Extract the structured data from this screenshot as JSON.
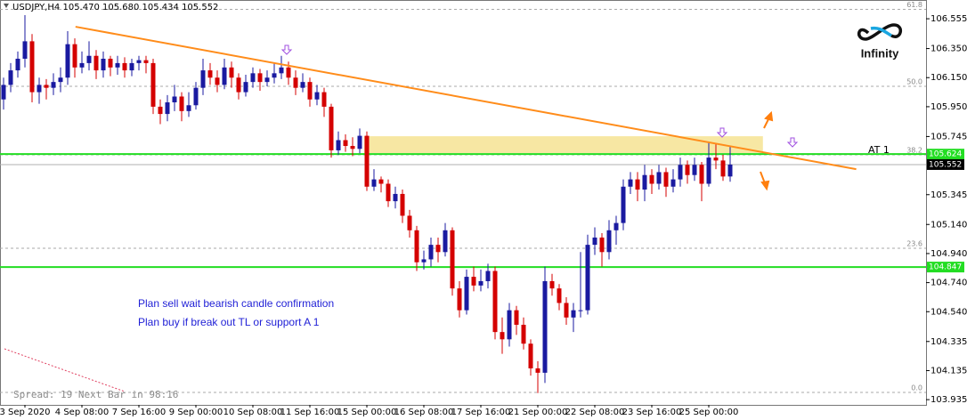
{
  "chart_data": {
    "type": "candlestick",
    "title": "USDJPY,H4  105.470 105.680 105.434 105.552",
    "categories": [
      null,
      null,
      null,
      "3 Sep 2020",
      null,
      null,
      null,
      null,
      null,
      null,
      null,
      "4 Sep 08:00",
      null,
      null,
      null,
      null,
      null,
      null,
      null,
      "7 Sep 16:00",
      null,
      null,
      null,
      null,
      null,
      null,
      null,
      "9 Sep 00:00",
      null,
      null,
      null,
      null,
      null,
      null,
      null,
      "10 Sep 08:00",
      null,
      null,
      null,
      null,
      null,
      null,
      null,
      "11 Sep 16:00",
      null,
      null,
      null,
      null,
      null,
      null,
      null,
      "15 Sep 00:00",
      null,
      null,
      null,
      null,
      null,
      null,
      null,
      "16 Sep 08:00",
      null,
      null,
      null,
      null,
      null,
      null,
      null,
      "17 Sep 16:00",
      null,
      null,
      null,
      null,
      null,
      null,
      null,
      "21 Sep 00:00",
      null,
      null,
      null,
      null,
      null,
      null,
      null,
      "22 Sep 08:00",
      null,
      null,
      null,
      null,
      null,
      null,
      null,
      "23 Sep 16:00",
      null,
      null,
      null,
      null,
      null,
      null,
      null,
      "25 Sep 00:00",
      null,
      null,
      null
    ],
    "open": [
      106.0,
      106.1,
      106.2,
      106.28,
      106.4,
      106.05,
      106.1,
      106.08,
      106.12,
      106.15,
      106.38,
      106.22,
      106.25,
      106.3,
      106.2,
      106.28,
      106.22,
      106.25,
      106.2,
      106.25,
      106.27,
      106.25,
      105.95,
      105.9,
      105.98,
      106.02,
      105.92,
      105.96,
      106.08,
      106.2,
      106.15,
      106.1,
      106.22,
      106.15,
      106.05,
      106.12,
      106.18,
      106.12,
      106.15,
      106.18,
      106.22,
      106.15,
      106.08,
      106.12,
      106.0,
      106.05,
      105.95,
      105.65,
      105.72,
      105.68,
      105.66,
      105.75,
      105.4,
      105.45,
      105.42,
      105.3,
      105.35,
      105.2,
      105.1,
      104.88,
      104.9,
      105.0,
      104.95,
      105.1,
      104.7,
      104.55,
      104.78,
      104.72,
      104.75,
      104.82,
      104.4,
      104.35,
      104.55,
      104.45,
      104.32,
      104.15,
      104.12,
      104.75,
      104.7,
      104.6,
      104.5,
      104.55,
      104.55,
      105.0,
      105.05,
      104.95,
      105.1,
      105.15,
      105.4,
      105.45,
      105.38,
      105.48,
      105.42,
      105.5,
      105.4,
      105.45,
      105.55,
      105.48,
      105.55,
      105.42,
      105.6,
      105.58,
      105.47
    ],
    "high": [
      106.15,
      106.25,
      106.33,
      106.58,
      106.45,
      106.15,
      106.14,
      106.18,
      106.22,
      106.47,
      106.42,
      106.33,
      106.4,
      106.34,
      106.33,
      106.3,
      106.3,
      106.29,
      106.28,
      106.3,
      106.3,
      106.28,
      106.0,
      106.03,
      106.1,
      106.05,
      106.05,
      106.12,
      106.28,
      106.25,
      106.2,
      106.28,
      106.26,
      106.18,
      106.17,
      106.22,
      106.21,
      106.2,
      106.25,
      106.3,
      106.26,
      106.2,
      106.18,
      106.15,
      106.1,
      106.08,
      105.97,
      105.78,
      105.76,
      105.74,
      105.8,
      105.78,
      105.52,
      105.47,
      105.45,
      105.4,
      105.38,
      105.24,
      105.13,
      104.96,
      105.05,
      105.05,
      105.15,
      105.12,
      104.75,
      104.83,
      104.85,
      104.83,
      104.87,
      104.85,
      104.5,
      104.6,
      104.58,
      104.5,
      104.35,
      104.2,
      104.85,
      104.8,
      104.73,
      104.64,
      104.6,
      104.95,
      105.07,
      105.12,
      105.08,
      105.17,
      105.2,
      105.45,
      105.5,
      105.5,
      105.55,
      105.52,
      105.55,
      105.53,
      105.52,
      105.6,
      105.58,
      105.6,
      105.57,
      105.7,
      105.7,
      105.62,
      105.68
    ],
    "low": [
      105.93,
      106.05,
      106.15,
      106.22,
      105.98,
      105.97,
      106.0,
      106.03,
      106.05,
      106.1,
      106.15,
      106.18,
      106.2,
      106.14,
      106.15,
      106.16,
      106.17,
      106.15,
      106.16,
      106.2,
      106.18,
      105.9,
      105.83,
      105.85,
      105.92,
      105.85,
      105.88,
      105.93,
      106.03,
      106.1,
      106.05,
      106.07,
      106.08,
      106.0,
      106.02,
      106.08,
      106.06,
      106.09,
      106.11,
      106.14,
      106.1,
      106.03,
      106.05,
      105.95,
      105.96,
      105.88,
      105.6,
      105.62,
      105.64,
      105.61,
      105.63,
      105.37,
      105.37,
      105.36,
      105.26,
      105.25,
      105.15,
      105.05,
      104.82,
      104.83,
      104.85,
      104.88,
      104.92,
      104.65,
      104.5,
      104.52,
      104.68,
      104.68,
      104.7,
      104.35,
      104.25,
      104.3,
      104.38,
      104.28,
      104.1,
      103.98,
      104.05,
      104.65,
      104.55,
      104.45,
      104.4,
      104.5,
      104.52,
      104.93,
      104.85,
      104.9,
      105.0,
      105.1,
      105.35,
      105.3,
      105.3,
      105.35,
      105.38,
      105.33,
      105.36,
      105.4,
      105.42,
      105.44,
      105.3,
      105.4,
      105.52,
      105.44,
      105.434
    ],
    "close": [
      106.1,
      106.2,
      106.28,
      106.4,
      106.05,
      106.1,
      106.08,
      106.12,
      106.15,
      106.38,
      106.22,
      106.25,
      106.3,
      106.2,
      106.28,
      106.22,
      106.25,
      106.2,
      106.25,
      106.27,
      106.25,
      105.95,
      105.9,
      105.98,
      106.02,
      105.92,
      105.96,
      106.08,
      106.2,
      106.15,
      106.1,
      106.22,
      106.15,
      106.05,
      106.12,
      106.18,
      106.12,
      106.15,
      106.18,
      106.22,
      106.15,
      106.08,
      106.12,
      106.0,
      106.05,
      105.95,
      105.65,
      105.72,
      105.68,
      105.66,
      105.75,
      105.4,
      105.45,
      105.42,
      105.3,
      105.35,
      105.2,
      105.1,
      104.88,
      104.9,
      105.0,
      104.95,
      105.1,
      104.7,
      104.55,
      104.78,
      104.72,
      104.75,
      104.82,
      104.4,
      104.35,
      104.55,
      104.45,
      104.32,
      104.15,
      104.12,
      104.75,
      104.7,
      104.6,
      104.5,
      104.55,
      104.55,
      105.0,
      105.05,
      104.95,
      105.1,
      105.15,
      105.4,
      105.45,
      105.38,
      105.48,
      105.42,
      105.5,
      105.4,
      105.45,
      105.55,
      105.48,
      105.55,
      105.42,
      105.6,
      105.58,
      105.47,
      105.552
    ],
    "bull_color": "#1a1aa0",
    "bear_color": "#d40000",
    "xlim": [
      -0.5,
      129.5
    ],
    "ylim": [
      103.899,
      106.684
    ],
    "yticks": [
      106.555,
      {
        "value": 106.35,
        "label": "106.350"
      },
      {
        "value": 106.15,
        "label": "106.150"
      },
      {
        "value": 105.95,
        "label": "105.950"
      },
      105.745,
      105.345,
      {
        "value": 105.14,
        "label": "105.140"
      },
      {
        "value": 104.94,
        "label": "104.940"
      },
      {
        "value": 104.74,
        "label": "104.740"
      },
      {
        "value": 104.54,
        "label": "104.540"
      },
      104.335,
      104.135,
      103.935
    ],
    "fib_levels": [
      {
        "value": 106.62,
        "label": "61.8"
      },
      {
        "value": 106.09,
        "label": "50.0"
      },
      {
        "value": 105.619,
        "label": "38.2"
      },
      {
        "value": 104.976,
        "label": "23.6"
      },
      {
        "value": 103.985,
        "label": "0.0"
      }
    ],
    "level_lines": [
      {
        "value": 105.624,
        "name": "AT 1",
        "color": "#22dd22"
      },
      {
        "value": 104.847,
        "color": "#22dd22"
      }
    ],
    "bid": {
      "value": 105.552,
      "color": "#000000"
    },
    "trendline": {
      "start": [
        10.1,
        106.5
      ],
      "end": [
        119.7,
        105.52
      ],
      "color": "#ff8c1a"
    },
    "zone": {
      "x": [
        50.6,
        106.6
      ],
      "y": [
        105.631,
        105.747
      ],
      "color": "#f7e7a3"
    },
    "notes": [
      "Plan sell wait bearish candle confirmation",
      "Plan buy if break out TL or support A 1"
    ],
    "status": "Spread: 19  Next Bar in 98:16",
    "logo": "Infinity"
  }
}
